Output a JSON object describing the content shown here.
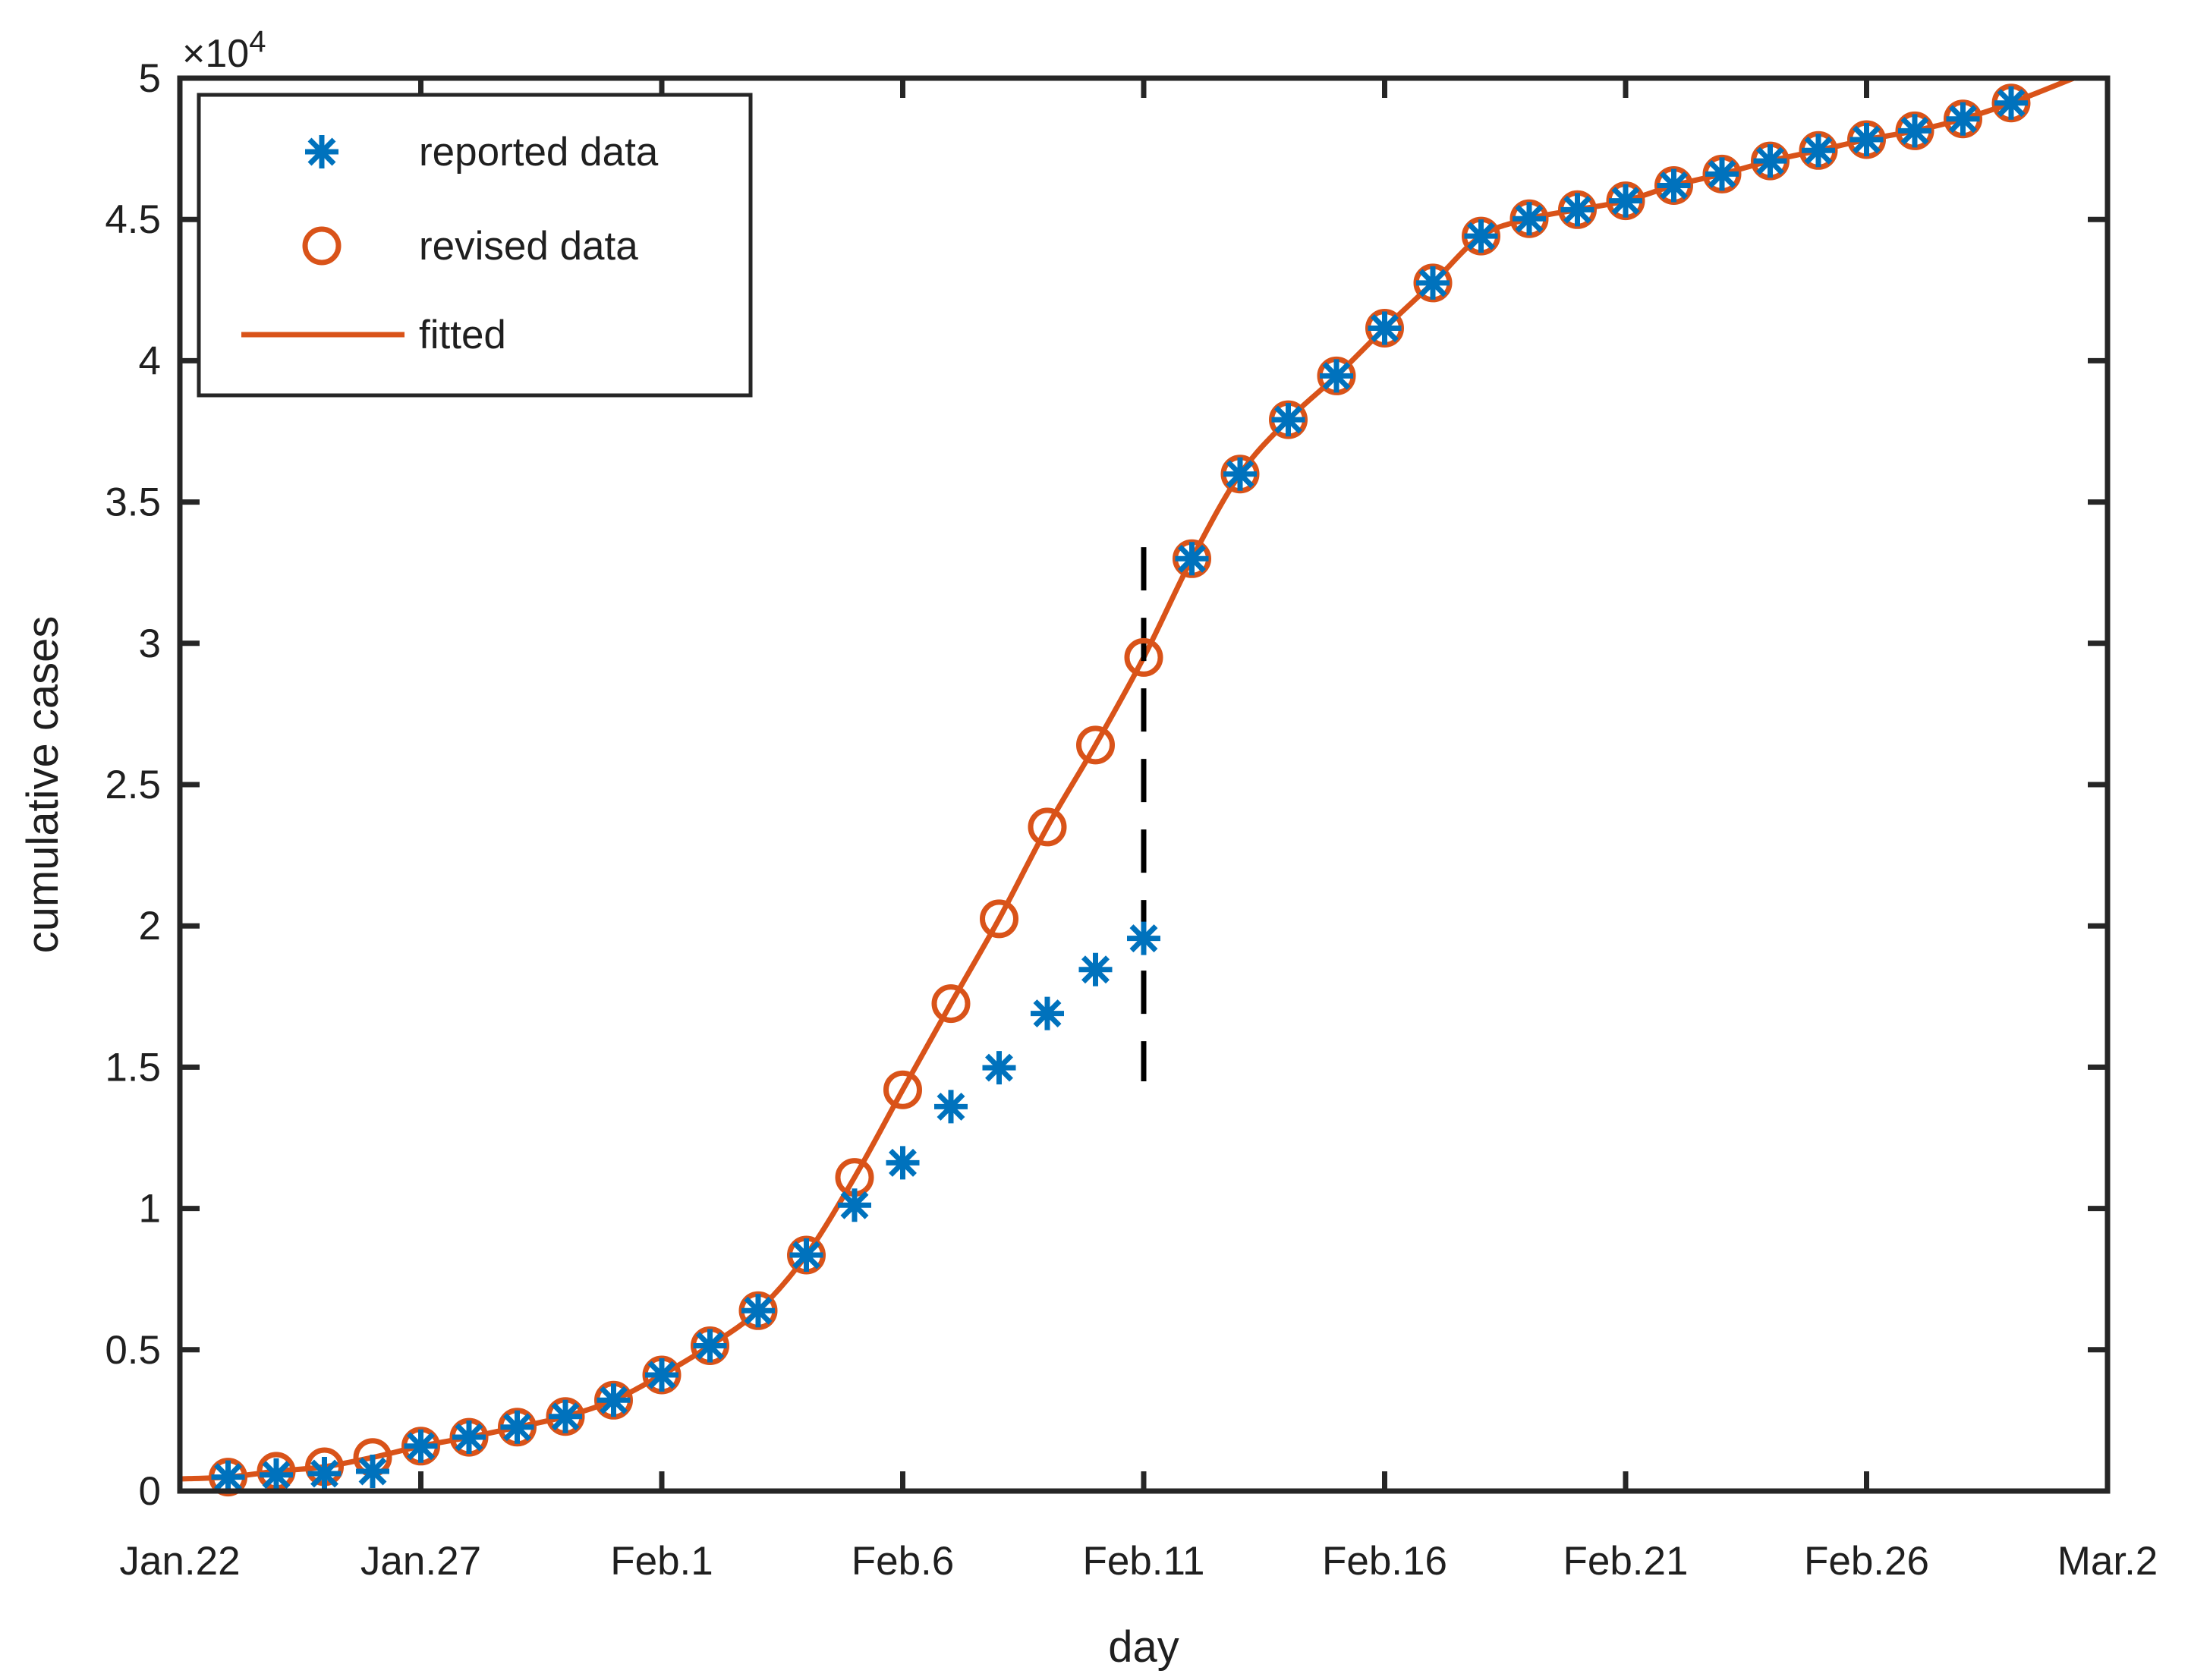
{
  "figure": {
    "background_color": "#ffffff",
    "axes_color": "#262626",
    "text_color": "#1f1f1f",
    "annotation_color": "#000000"
  },
  "chart_data": {
    "type": "scatter+line",
    "title": "",
    "xlabel": "day",
    "ylabel": "cumulative cases",
    "y_axis_multiplier": {
      "base": "×10",
      "exp": "4"
    },
    "xlim_days": [
      0,
      40
    ],
    "ylim": [
      0,
      50000
    ],
    "grid": false,
    "legend_position": "top-left",
    "x_tick_days": [
      0,
      5,
      10,
      15,
      20,
      25,
      30,
      35,
      40
    ],
    "x_tick_labels": [
      "Jan.22",
      "Jan.27",
      "Feb.1",
      "Feb.6",
      "Feb.11",
      "Feb.16",
      "Feb.21",
      "Feb.26",
      "Mar.2"
    ],
    "y_tick_values": [
      0,
      5000,
      10000,
      15000,
      20000,
      25000,
      30000,
      35000,
      40000,
      45000,
      50000
    ],
    "y_tick_labels": [
      "0",
      "0.5",
      "1",
      "1.5",
      "2",
      "2.5",
      "3",
      "3.5",
      "4",
      "4.5",
      "5"
    ],
    "days": [
      1,
      2,
      3,
      4,
      5,
      6,
      7,
      8,
      9,
      10,
      11,
      12,
      13,
      14,
      15,
      16,
      17,
      18,
      19,
      20,
      21,
      22,
      23,
      24,
      25,
      26,
      27,
      28,
      29,
      30,
      31,
      32,
      33,
      34,
      35,
      36,
      37,
      38
    ],
    "day_labels": [
      "Jan.23",
      "Jan.24",
      "Jan.25",
      "Jan.26",
      "Jan.27",
      "Jan.28",
      "Jan.29",
      "Jan.30",
      "Jan.31",
      "Feb.1",
      "Feb.2",
      "Feb.3",
      "Feb.4",
      "Feb.5",
      "Feb.6",
      "Feb.7",
      "Feb.8",
      "Feb.9",
      "Feb.10",
      "Feb.11",
      "Feb.12",
      "Feb.13",
      "Feb.14",
      "Feb.15",
      "Feb.16",
      "Feb.17",
      "Feb.18",
      "Feb.19",
      "Feb.20",
      "Feb.21",
      "Feb.22",
      "Feb.23",
      "Feb.24",
      "Feb.25",
      "Feb.26",
      "Feb.27",
      "Feb.28",
      "Feb.29"
    ],
    "series": [
      {
        "name": "reported data",
        "marker": "asterisk",
        "color": "#0072BD",
        "values": [
          495,
          572,
          618,
          698,
          1590,
          1905,
          2261,
          2639,
          3215,
          4109,
          5142,
          6384,
          8351,
          10117,
          11618,
          13603,
          14982,
          16902,
          18454,
          19558,
          32994,
          35991,
          37914,
          39462,
          41152,
          42752,
          44412,
          45027,
          45346,
          45660,
          46201,
          46607,
          47071,
          47441,
          47824,
          48137,
          48557,
          49122
        ]
      },
      {
        "name": "revised data",
        "marker": "circle",
        "color": "#D95319",
        "values": [
          495,
          700,
          860,
          1190,
          1590,
          1905,
          2261,
          2639,
          3215,
          4109,
          5142,
          6384,
          8351,
          11100,
          14200,
          17250,
          20250,
          23500,
          26400,
          29500,
          32994,
          35991,
          37914,
          39462,
          41152,
          42752,
          44412,
          45027,
          45346,
          45660,
          46201,
          46607,
          47071,
          47441,
          47824,
          48137,
          48557,
          49122
        ]
      },
      {
        "name": "fitted",
        "marker": "none",
        "color": "#D95319",
        "note": "smooth curve through revised data",
        "start_anchor": {
          "day": 0,
          "value": 430
        },
        "end_anchor": {
          "day": 39.3,
          "value": 50000
        }
      }
    ],
    "annotation_dashed_line": {
      "day": 20,
      "day_label": "Feb.11",
      "value_from": 14500,
      "value_to": 33400,
      "color": "#000000",
      "style": "dashed"
    }
  }
}
